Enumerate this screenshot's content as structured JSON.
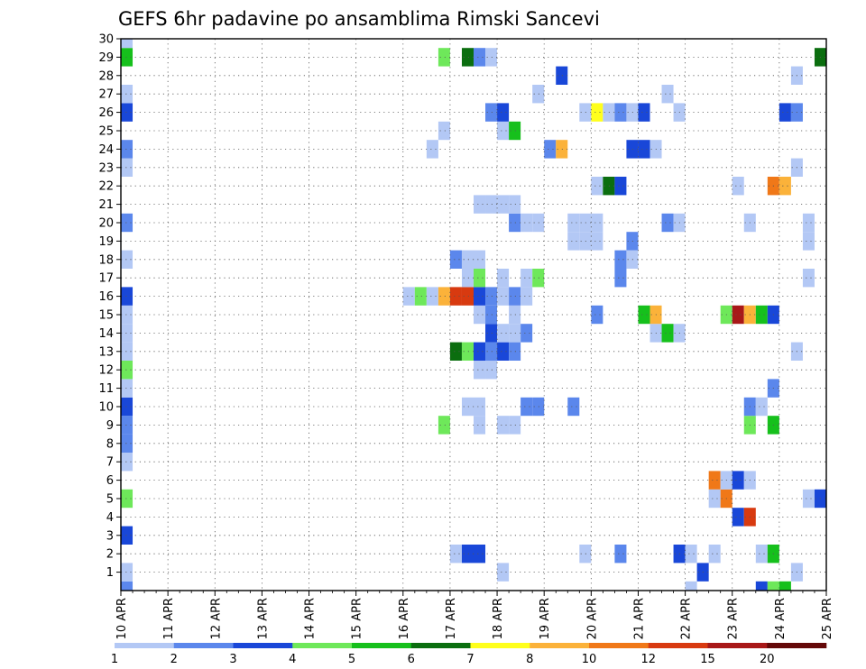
{
  "chart_data": {
    "type": "heatmap",
    "title": "GEFS 6hr padavine po ansamblima Rimski Sancevi",
    "xlabel": "",
    "ylabel": "",
    "x_ticks": [
      "10 APR",
      "11 APR",
      "12 APR",
      "13 APR",
      "14 APR",
      "15 APR",
      "16 APR",
      "17 APR",
      "18 APR",
      "19 APR",
      "20 APR",
      "21 APR",
      "22 APR",
      "23 APR",
      "24 APR",
      "25 APR"
    ],
    "y_ticks": [
      1,
      2,
      3,
      4,
      5,
      6,
      7,
      8,
      9,
      10,
      11,
      12,
      13,
      14,
      15,
      16,
      17,
      18,
      19,
      20,
      21,
      22,
      23,
      24,
      25,
      26,
      27,
      28,
      29,
      30
    ],
    "ylim": [
      0,
      30
    ],
    "grid": true,
    "legend_position": "bottom",
    "colorbar": {
      "labels": [
        "1",
        "2",
        "3",
        "4",
        "5",
        "6",
        "7",
        "8",
        "10",
        "12",
        "15",
        "20"
      ],
      "colors": [
        "#b3c8f5",
        "#5b87ec",
        "#1947d8",
        "#6ee85a",
        "#16c01c",
        "#0b6e0f",
        "#ffff1c",
        "#fbb23a",
        "#f07818",
        "#d83a10",
        "#a81818",
        "#640808"
      ]
    },
    "time_axis": {
      "start": "10 APR 00Z",
      "end": "25 APR 00Z",
      "step_hours": 6
    },
    "cells": [
      {
        "t": "10 APR 00Z",
        "m": 0,
        "v": 2
      },
      {
        "t": "10 APR 00Z",
        "m": 1,
        "v": 1
      },
      {
        "t": "10 APR 00Z",
        "m": 3,
        "v": 3
      },
      {
        "t": "10 APR 00Z",
        "m": 5,
        "v": 4
      },
      {
        "t": "10 APR 00Z",
        "m": 7,
        "v": 1
      },
      {
        "t": "10 APR 00Z",
        "m": 8,
        "v": 2
      },
      {
        "t": "10 APR 00Z",
        "m": 9,
        "v": 2
      },
      {
        "t": "10 APR 00Z",
        "m": 10,
        "v": 3
      },
      {
        "t": "10 APR 00Z",
        "m": 11,
        "v": 1
      },
      {
        "t": "10 APR 00Z",
        "m": 12,
        "v": 4
      },
      {
        "t": "10 APR 00Z",
        "m": 13,
        "v": 1
      },
      {
        "t": "10 APR 00Z",
        "m": 14,
        "v": 1
      },
      {
        "t": "10 APR 00Z",
        "m": 15,
        "v": 1
      },
      {
        "t": "10 APR 00Z",
        "m": 16,
        "v": 3
      },
      {
        "t": "10 APR 00Z",
        "m": 18,
        "v": 1
      },
      {
        "t": "10 APR 00Z",
        "m": 20,
        "v": 2
      },
      {
        "t": "10 APR 00Z",
        "m": 23,
        "v": 1
      },
      {
        "t": "10 APR 00Z",
        "m": 24,
        "v": 2
      },
      {
        "t": "10 APR 00Z",
        "m": 26,
        "v": 3
      },
      {
        "t": "10 APR 00Z",
        "m": 27,
        "v": 1
      },
      {
        "t": "10 APR 00Z",
        "m": 29,
        "v": 5
      },
      {
        "t": "10 APR 00Z",
        "m": 30,
        "v": 1
      },
      {
        "t": "16 APR 00Z",
        "m": 16,
        "v": 1
      },
      {
        "t": "16 APR 06Z",
        "m": 16,
        "v": 4
      },
      {
        "t": "16 APR 12Z",
        "m": 16,
        "v": 1
      },
      {
        "t": "16 APR 12Z",
        "m": 24,
        "v": 1
      },
      {
        "t": "16 APR 18Z",
        "m": 16,
        "v": 8
      },
      {
        "t": "16 APR 18Z",
        "m": 9,
        "v": 4
      },
      {
        "t": "16 APR 18Z",
        "m": 25,
        "v": 1
      },
      {
        "t": "16 APR 18Z",
        "m": 29,
        "v": 4
      },
      {
        "t": "17 APR 00Z",
        "m": 2,
        "v": 1
      },
      {
        "t": "17 APR 00Z",
        "m": 13,
        "v": 6
      },
      {
        "t": "17 APR 00Z",
        "m": 16,
        "v": 12
      },
      {
        "t": "17 APR 00Z",
        "m": 18,
        "v": 2
      },
      {
        "t": "17 APR 06Z",
        "m": 2,
        "v": 3
      },
      {
        "t": "17 APR 06Z",
        "m": 10,
        "v": 1
      },
      {
        "t": "17 APR 06Z",
        "m": 13,
        "v": 4
      },
      {
        "t": "17 APR 06Z",
        "m": 16,
        "v": 12
      },
      {
        "t": "17 APR 06Z",
        "m": 17,
        "v": 1
      },
      {
        "t": "17 APR 06Z",
        "m": 18,
        "v": 1
      },
      {
        "t": "17 APR 06Z",
        "m": 29,
        "v": 6
      },
      {
        "t": "17 APR 12Z",
        "m": 2,
        "v": 3
      },
      {
        "t": "17 APR 12Z",
        "m": 9,
        "v": 1
      },
      {
        "t": "17 APR 12Z",
        "m": 10,
        "v": 1
      },
      {
        "t": "17 APR 12Z",
        "m": 12,
        "v": 1
      },
      {
        "t": "17 APR 12Z",
        "m": 13,
        "v": 3
      },
      {
        "t": "17 APR 12Z",
        "m": 15,
        "v": 1
      },
      {
        "t": "17 APR 12Z",
        "m": 16,
        "v": 3
      },
      {
        "t": "17 APR 12Z",
        "m": 17,
        "v": 4
      },
      {
        "t": "17 APR 12Z",
        "m": 18,
        "v": 1
      },
      {
        "t": "17 APR 12Z",
        "m": 21,
        "v": 1
      },
      {
        "t": "17 APR 12Z",
        "m": 29,
        "v": 2
      },
      {
        "t": "17 APR 18Z",
        "m": 12,
        "v": 1
      },
      {
        "t": "17 APR 18Z",
        "m": 13,
        "v": 2
      },
      {
        "t": "17 APR 18Z",
        "m": 14,
        "v": 3
      },
      {
        "t": "17 APR 18Z",
        "m": 15,
        "v": 2
      },
      {
        "t": "17 APR 18Z",
        "m": 16,
        "v": 2
      },
      {
        "t": "17 APR 18Z",
        "m": 21,
        "v": 1
      },
      {
        "t": "17 APR 18Z",
        "m": 26,
        "v": 2
      },
      {
        "t": "17 APR 18Z",
        "m": 29,
        "v": 1
      },
      {
        "t": "18 APR 00Z",
        "m": 1,
        "v": 1
      },
      {
        "t": "18 APR 00Z",
        "m": 9,
        "v": 1
      },
      {
        "t": "18 APR 00Z",
        "m": 13,
        "v": 3
      },
      {
        "t": "18 APR 00Z",
        "m": 14,
        "v": 1
      },
      {
        "t": "18 APR 00Z",
        "m": 16,
        "v": 1
      },
      {
        "t": "18 APR 00Z",
        "m": 17,
        "v": 1
      },
      {
        "t": "18 APR 00Z",
        "m": 21,
        "v": 1
      },
      {
        "t": "18 APR 00Z",
        "m": 25,
        "v": 1
      },
      {
        "t": "18 APR 00Z",
        "m": 26,
        "v": 3
      },
      {
        "t": "18 APR 06Z",
        "m": 9,
        "v": 1
      },
      {
        "t": "18 APR 06Z",
        "m": 13,
        "v": 2
      },
      {
        "t": "18 APR 06Z",
        "m": 14,
        "v": 1
      },
      {
        "t": "18 APR 06Z",
        "m": 15,
        "v": 1
      },
      {
        "t": "18 APR 06Z",
        "m": 16,
        "v": 2
      },
      {
        "t": "18 APR 06Z",
        "m": 20,
        "v": 2
      },
      {
        "t": "18 APR 06Z",
        "m": 21,
        "v": 1
      },
      {
        "t": "18 APR 06Z",
        "m": 25,
        "v": 5
      },
      {
        "t": "18 APR 12Z",
        "m": 10,
        "v": 2
      },
      {
        "t": "18 APR 12Z",
        "m": 14,
        "v": 2
      },
      {
        "t": "18 APR 12Z",
        "m": 16,
        "v": 1
      },
      {
        "t": "18 APR 12Z",
        "m": 17,
        "v": 1
      },
      {
        "t": "18 APR 12Z",
        "m": 20,
        "v": 1
      },
      {
        "t": "18 APR 18Z",
        "m": 10,
        "v": 2
      },
      {
        "t": "18 APR 18Z",
        "m": 17,
        "v": 4
      },
      {
        "t": "18 APR 18Z",
        "m": 20,
        "v": 1
      },
      {
        "t": "18 APR 18Z",
        "m": 27,
        "v": 1
      },
      {
        "t": "19 APR 00Z",
        "m": 24,
        "v": 2
      },
      {
        "t": "19 APR 06Z",
        "m": 24,
        "v": 8
      },
      {
        "t": "19 APR 06Z",
        "m": 28,
        "v": 3
      },
      {
        "t": "19 APR 12Z",
        "m": 10,
        "v": 2
      },
      {
        "t": "19 APR 12Z",
        "m": 19,
        "v": 1
      },
      {
        "t": "19 APR 12Z",
        "m": 20,
        "v": 1
      },
      {
        "t": "19 APR 18Z",
        "m": 2,
        "v": 1
      },
      {
        "t": "19 APR 18Z",
        "m": 19,
        "v": 1
      },
      {
        "t": "19 APR 18Z",
        "m": 20,
        "v": 1
      },
      {
        "t": "19 APR 18Z",
        "m": 26,
        "v": 1
      },
      {
        "t": "20 APR 00Z",
        "m": 15,
        "v": 2
      },
      {
        "t": "20 APR 00Z",
        "m": 19,
        "v": 1
      },
      {
        "t": "20 APR 00Z",
        "m": 20,
        "v": 1
      },
      {
        "t": "20 APR 00Z",
        "m": 22,
        "v": 1
      },
      {
        "t": "20 APR 00Z",
        "m": 26,
        "v": 7
      },
      {
        "t": "20 APR 06Z",
        "m": 22,
        "v": 6
      },
      {
        "t": "20 APR 06Z",
        "m": 26,
        "v": 1
      },
      {
        "t": "20 APR 12Z",
        "m": 2,
        "v": 2
      },
      {
        "t": "20 APR 12Z",
        "m": 17,
        "v": 2
      },
      {
        "t": "20 APR 12Z",
        "m": 18,
        "v": 2
      },
      {
        "t": "20 APR 12Z",
        "m": 22,
        "v": 3
      },
      {
        "t": "20 APR 12Z",
        "m": 26,
        "v": 2
      },
      {
        "t": "20 APR 18Z",
        "m": 18,
        "v": 1
      },
      {
        "t": "20 APR 18Z",
        "m": 19,
        "v": 2
      },
      {
        "t": "20 APR 18Z",
        "m": 24,
        "v": 3
      },
      {
        "t": "20 APR 18Z",
        "m": 26,
        "v": 1
      },
      {
        "t": "21 APR 00Z",
        "m": 15,
        "v": 5
      },
      {
        "t": "21 APR 00Z",
        "m": 24,
        "v": 3
      },
      {
        "t": "21 APR 00Z",
        "m": 26,
        "v": 3
      },
      {
        "t": "21 APR 06Z",
        "m": 14,
        "v": 1
      },
      {
        "t": "21 APR 06Z",
        "m": 15,
        "v": 8
      },
      {
        "t": "21 APR 06Z",
        "m": 24,
        "v": 1
      },
      {
        "t": "21 APR 12Z",
        "m": 14,
        "v": 5
      },
      {
        "t": "21 APR 12Z",
        "m": 20,
        "v": 2
      },
      {
        "t": "21 APR 12Z",
        "m": 27,
        "v": 1
      },
      {
        "t": "21 APR 18Z",
        "m": 2,
        "v": 3
      },
      {
        "t": "21 APR 18Z",
        "m": 14,
        "v": 1
      },
      {
        "t": "21 APR 18Z",
        "m": 20,
        "v": 1
      },
      {
        "t": "21 APR 18Z",
        "m": 26,
        "v": 1
      },
      {
        "t": "22 APR 00Z",
        "m": 0,
        "v": 1
      },
      {
        "t": "22 APR 00Z",
        "m": 2,
        "v": 1
      },
      {
        "t": "22 APR 06Z",
        "m": 1,
        "v": 3
      },
      {
        "t": "22 APR 12Z",
        "m": 2,
        "v": 1
      },
      {
        "t": "22 APR 12Z",
        "m": 5,
        "v": 1
      },
      {
        "t": "22 APR 12Z",
        "m": 6,
        "v": 10
      },
      {
        "t": "22 APR 18Z",
        "m": 5,
        "v": 10
      },
      {
        "t": "22 APR 18Z",
        "m": 6,
        "v": 1
      },
      {
        "t": "22 APR 18Z",
        "m": 15,
        "v": 4
      },
      {
        "t": "23 APR 00Z",
        "m": 4,
        "v": 3
      },
      {
        "t": "23 APR 00Z",
        "m": 6,
        "v": 3
      },
      {
        "t": "23 APR 00Z",
        "m": 15,
        "v": 15
      },
      {
        "t": "23 APR 00Z",
        "m": 22,
        "v": 1
      },
      {
        "t": "23 APR 06Z",
        "m": 4,
        "v": 12
      },
      {
        "t": "23 APR 06Z",
        "m": 6,
        "v": 1
      },
      {
        "t": "23 APR 06Z",
        "m": 9,
        "v": 4
      },
      {
        "t": "23 APR 06Z",
        "m": 10,
        "v": 2
      },
      {
        "t": "23 APR 06Z",
        "m": 15,
        "v": 8
      },
      {
        "t": "23 APR 06Z",
        "m": 20,
        "v": 1
      },
      {
        "t": "23 APR 12Z",
        "m": 0,
        "v": 3
      },
      {
        "t": "23 APR 12Z",
        "m": 2,
        "v": 1
      },
      {
        "t": "23 APR 12Z",
        "m": 10,
        "v": 1
      },
      {
        "t": "23 APR 12Z",
        "m": 15,
        "v": 5
      },
      {
        "t": "23 APR 18Z",
        "m": 0,
        "v": 4
      },
      {
        "t": "23 APR 18Z",
        "m": 2,
        "v": 5
      },
      {
        "t": "23 APR 18Z",
        "m": 9,
        "v": 5
      },
      {
        "t": "23 APR 18Z",
        "m": 11,
        "v": 2
      },
      {
        "t": "23 APR 18Z",
        "m": 15,
        "v": 3
      },
      {
        "t": "23 APR 18Z",
        "m": 22,
        "v": 10
      },
      {
        "t": "24 APR 00Z",
        "m": 0,
        "v": 5
      },
      {
        "t": "24 APR 00Z",
        "m": 22,
        "v": 8
      },
      {
        "t": "24 APR 00Z",
        "m": 26,
        "v": 3
      },
      {
        "t": "24 APR 06Z",
        "m": 1,
        "v": 1
      },
      {
        "t": "24 APR 06Z",
        "m": 13,
        "v": 1
      },
      {
        "t": "24 APR 06Z",
        "m": 23,
        "v": 1
      },
      {
        "t": "24 APR 06Z",
        "m": 26,
        "v": 2
      },
      {
        "t": "24 APR 06Z",
        "m": 28,
        "v": 1
      },
      {
        "t": "24 APR 12Z",
        "m": 5,
        "v": 1
      },
      {
        "t": "24 APR 12Z",
        "m": 19,
        "v": 1
      },
      {
        "t": "24 APR 12Z",
        "m": 20,
        "v": 1
      },
      {
        "t": "24 APR 12Z",
        "m": 17,
        "v": 1
      },
      {
        "t": "24 APR 18Z",
        "m": 5,
        "v": 3
      },
      {
        "t": "24 APR 18Z",
        "m": 29,
        "v": 6
      }
    ]
  }
}
